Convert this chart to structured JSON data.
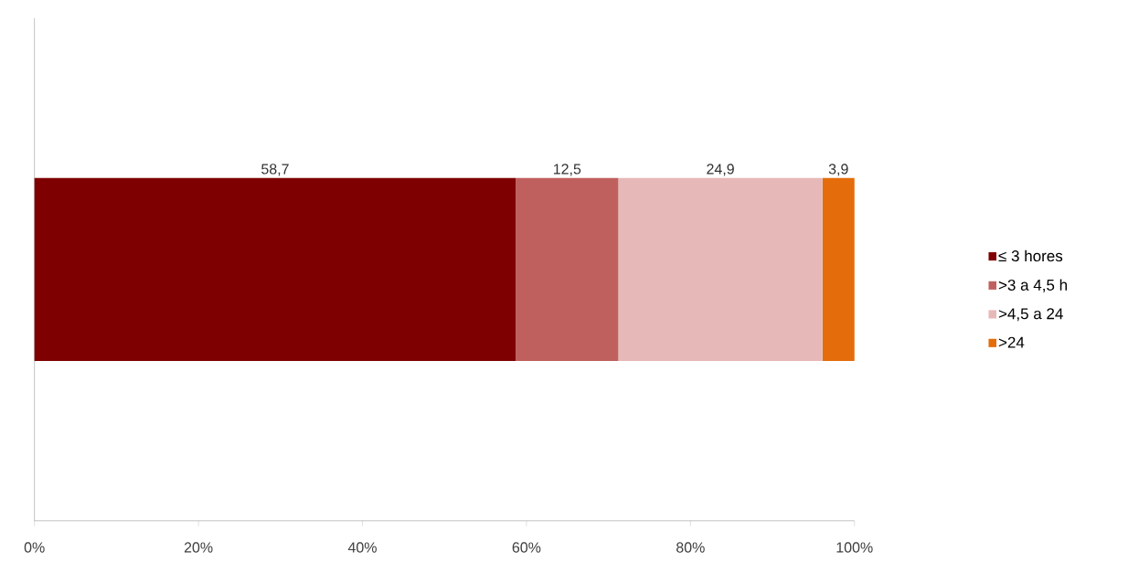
{
  "chart_data": {
    "type": "bar",
    "orientation": "horizontal",
    "stacked": true,
    "categories": [
      null
    ],
    "series": [
      {
        "name": "≤ 3 hores",
        "color": "#7f0000",
        "values": [
          58.7
        ],
        "value_labels": [
          "58,7"
        ]
      },
      {
        "name": ">3 a 4,5 h",
        "color": "#c0605e",
        "values": [
          12.5
        ],
        "value_labels": [
          "12,5"
        ]
      },
      {
        "name": ">4,5 a 24",
        "color": "#e6b8b7",
        "values": [
          24.9
        ],
        "value_labels": [
          "24,9"
        ]
      },
      {
        "name": ">24",
        "color": "#e46c0a",
        "values": [
          3.9
        ],
        "value_labels": [
          "3,9"
        ]
      }
    ],
    "xlim": [
      0,
      100
    ],
    "xticks": [
      {
        "value": 0,
        "label": "0%"
      },
      {
        "value": 20,
        "label": "20%"
      },
      {
        "value": 40,
        "label": "40%"
      },
      {
        "value": 60,
        "label": "60%"
      },
      {
        "value": 80,
        "label": "80%"
      },
      {
        "value": 100,
        "label": "100%"
      }
    ],
    "legend": "right"
  }
}
